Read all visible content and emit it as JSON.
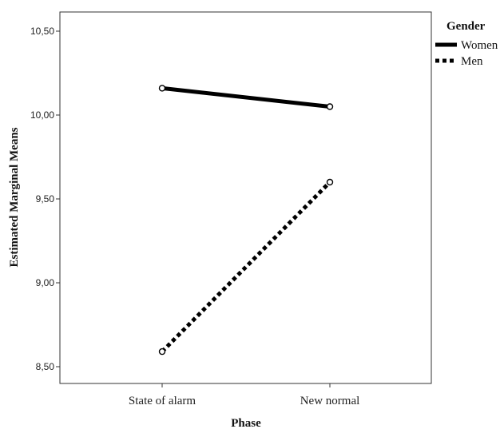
{
  "chart_data": {
    "type": "line",
    "xlabel": "Phase",
    "ylabel": "Estimated Marginal Means",
    "categories": [
      "State of alarm",
      "New normal"
    ],
    "ylim": [
      8.45,
      10.6
    ],
    "yticks": [
      8.5,
      9.0,
      9.5,
      10.0,
      10.5
    ],
    "ytick_labels": [
      "8,50",
      "9,00",
      "9,50",
      "10,00",
      "10,50"
    ],
    "legend": {
      "title": "Gender",
      "position": "top-right-outside"
    },
    "series": [
      {
        "name": "Women",
        "values": [
          10.16,
          10.05
        ],
        "line_style": "solid",
        "color": "#000000"
      },
      {
        "name": "Men",
        "values": [
          8.59,
          9.6
        ],
        "line_style": "dotted",
        "color": "#000000"
      }
    ],
    "grid": false
  }
}
